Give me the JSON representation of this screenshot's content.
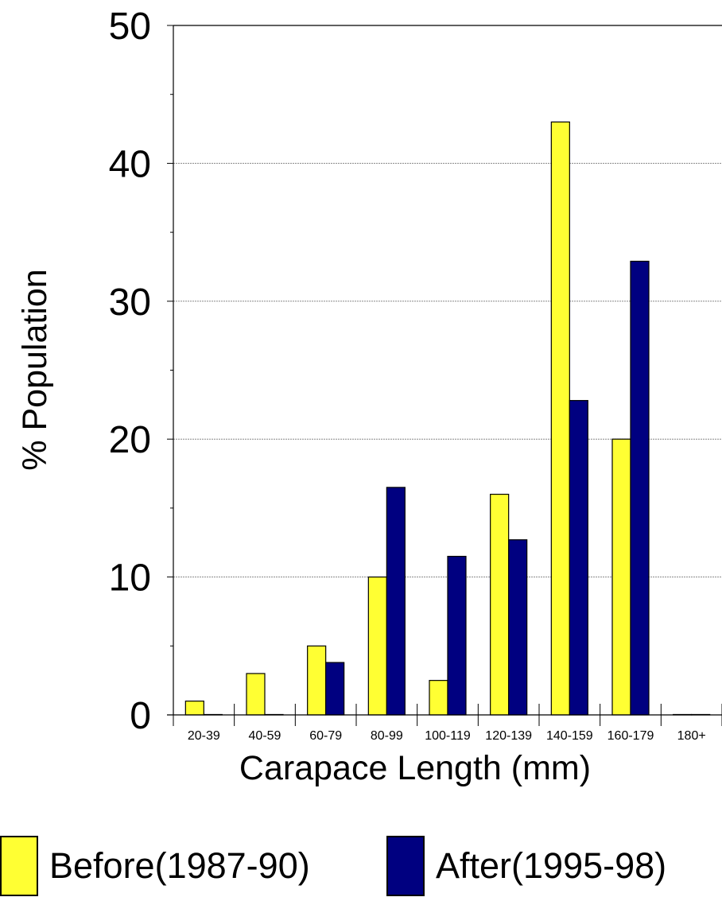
{
  "chart_data": {
    "type": "bar",
    "categories": [
      "20-39",
      "40-59",
      "60-79",
      "80-99",
      "100-119",
      "120-139",
      "140-159",
      "160-179",
      "180+"
    ],
    "series": [
      {
        "name": "Before(1987-90)",
        "values": [
          1,
          3,
          5,
          10,
          2.5,
          16,
          43,
          20,
          0
        ],
        "color": "#ffff33"
      },
      {
        "name": "After(1995-98)",
        "values": [
          0,
          0,
          3.8,
          16.5,
          11.5,
          12.7,
          22.8,
          32.9,
          0
        ],
        "color": "#000080"
      }
    ],
    "title": "",
    "xlabel": "Carapace Length (mm)",
    "ylabel": "% Population",
    "ylim": [
      0,
      50
    ],
    "yticks": [
      "0",
      "10",
      "20",
      "30",
      "40",
      "50"
    ],
    "grid": true,
    "legend_position": "bottom"
  }
}
